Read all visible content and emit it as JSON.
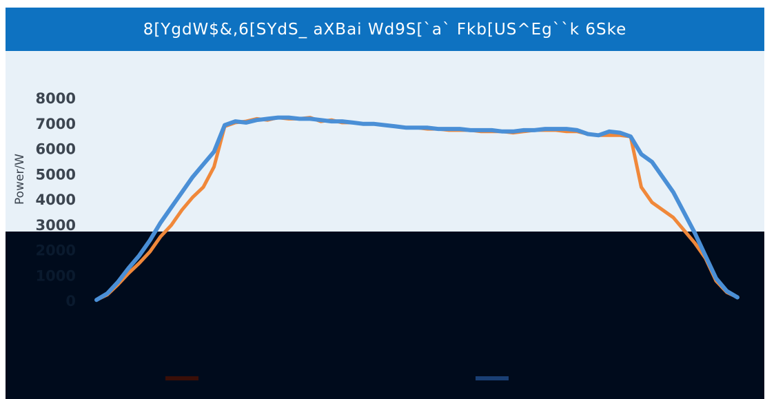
{
  "title": "8[YgdW$&,6[SYdS_ aXBai Wd9S[`a` Fkb[US^Eg``k 6Ske",
  "colors": {
    "header": "#0e72c1",
    "plot_background": "#e8f1f8",
    "dark_band": "#000b1c",
    "series_orange": "#f0883a",
    "series_blue": "#4a8fd6"
  },
  "chart_data": {
    "type": "line",
    "title": "8[YgdW$&,6[SYdS_ aXBai Wd9S[`a` Fkb[US^Eg``k 6Ske",
    "ylabel": "Power/W",
    "xlabel": "",
    "ylim": [
      0,
      8000
    ],
    "yticks": [
      "8000",
      "7000",
      "6000",
      "5000",
      "4000",
      "3000",
      "2000",
      "1000",
      "0"
    ],
    "grid": false,
    "legend_position": "bottom",
    "x": [
      0,
      3,
      6,
      9,
      12,
      15,
      18,
      21,
      24,
      27,
      30,
      33,
      36,
      39,
      42,
      45,
      48,
      51,
      54,
      57,
      60,
      63,
      66,
      69,
      72,
      75,
      78,
      81,
      84,
      87,
      90,
      93,
      96,
      99,
      102,
      105,
      108,
      111,
      114,
      117,
      120,
      123,
      126,
      129,
      132,
      135,
      138,
      141,
      144,
      147,
      150,
      153,
      156,
      159,
      162,
      165,
      168,
      171,
      174,
      177,
      180
    ],
    "series": [
      {
        "values": [
          50,
          250,
          650,
          1100,
          1500,
          1950,
          2550,
          3000,
          3600,
          4100,
          4500,
          5300,
          6900,
          7050,
          7100,
          7200,
          7150,
          7250,
          7200,
          7200,
          7250,
          7100,
          7150,
          7050,
          7050,
          7000,
          7000,
          6950,
          6900,
          6850,
          6850,
          6800,
          6800,
          6750,
          6750,
          6750,
          6700,
          6700,
          6700,
          6650,
          6700,
          6750,
          6750,
          6750,
          6700,
          6700,
          6600,
          6550,
          6550,
          6550,
          6500,
          4500,
          3900,
          3600,
          3300,
          2800,
          2300,
          1700,
          800,
          350,
          150
        ]
      },
      {
        "values": [
          50,
          300,
          750,
          1300,
          1800,
          2400,
          3100,
          3700,
          4300,
          4900,
          5400,
          5900,
          6950,
          7100,
          7050,
          7150,
          7200,
          7250,
          7250,
          7200,
          7200,
          7150,
          7100,
          7100,
          7050,
          7000,
          7000,
          6950,
          6900,
          6850,
          6850,
          6850,
          6800,
          6800,
          6800,
          6750,
          6750,
          6750,
          6700,
          6700,
          6750,
          6750,
          6800,
          6800,
          6800,
          6750,
          6600,
          6550,
          6700,
          6650,
          6500,
          5800,
          5500,
          4900,
          4300,
          3500,
          2700,
          1800,
          900,
          400,
          150
        ]
      }
    ],
    "x_tick_labels": [],
    "legend_entries": []
  }
}
